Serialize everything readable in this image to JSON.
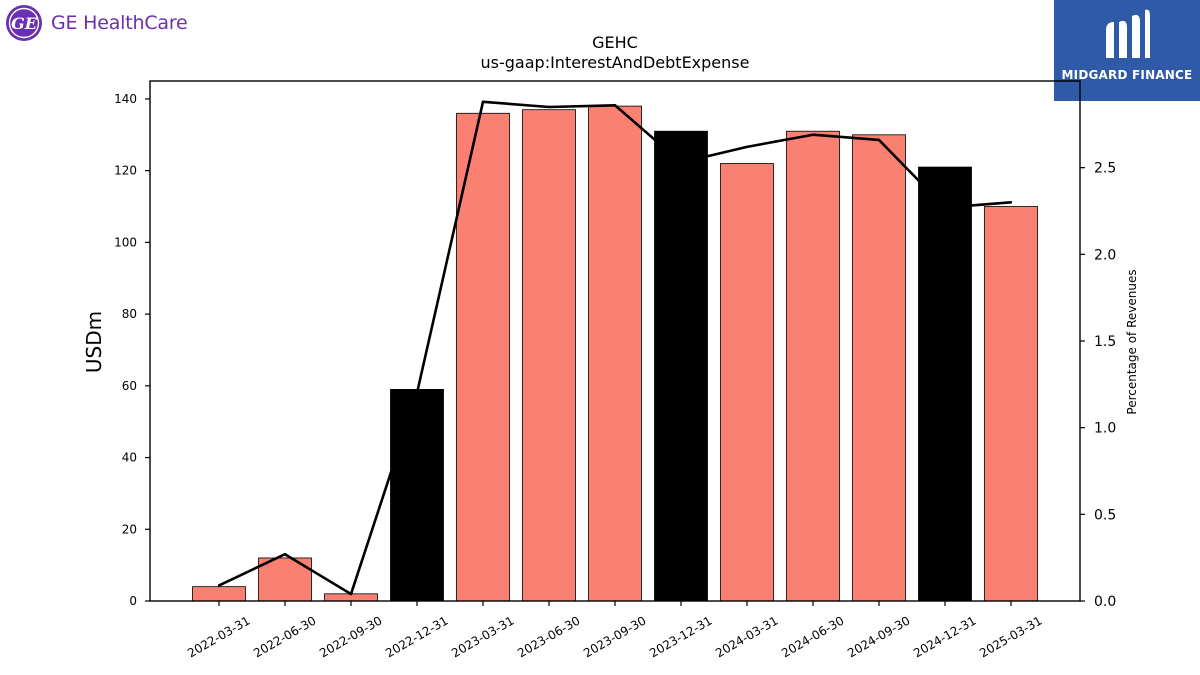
{
  "brand": {
    "company_logo_text": "GE HealthCare",
    "company_color": "#6b2fb3",
    "publisher_logo_text": "MIDGARD FINANCE",
    "publisher_color": "#2e5aa8"
  },
  "chart_data": {
    "type": "bar",
    "title": "GEHC",
    "subtitle": "us-gaap:InterestAndDebtExpense",
    "ylabel": "USDm",
    "y2label": "Percentage of Revenues",
    "categories": [
      "2022-03-31",
      "2022-06-30",
      "2022-09-30",
      "2022-12-31",
      "2023-03-31",
      "2023-06-30",
      "2023-09-30",
      "2023-12-31",
      "2024-03-31",
      "2024-06-30",
      "2024-09-30",
      "2024-12-31",
      "2025-03-31"
    ],
    "values": [
      4,
      12,
      2,
      59,
      136,
      137,
      138,
      131,
      122,
      131,
      130,
      121,
      110
    ],
    "bar_colors": [
      "#fa8072",
      "#fa8072",
      "#fa8072",
      "#000000",
      "#fa8072",
      "#fa8072",
      "#fa8072",
      "#000000",
      "#fa8072",
      "#fa8072",
      "#fa8072",
      "#000000",
      "#fa8072"
    ],
    "line_series": {
      "values": [
        0.09,
        0.27,
        0.04,
        1.2,
        2.88,
        2.85,
        2.86,
        2.53,
        2.62,
        2.69,
        2.66,
        2.27,
        2.3
      ]
    },
    "ylim": [
      0,
      145
    ],
    "y2lim": [
      0,
      3.0
    ],
    "yticks": [
      0,
      20,
      40,
      60,
      80,
      100,
      120,
      140
    ],
    "y2ticks": [
      0.0,
      0.5,
      1.0,
      1.5,
      2.0,
      2.5
    ],
    "grid": false,
    "legend": "none"
  }
}
